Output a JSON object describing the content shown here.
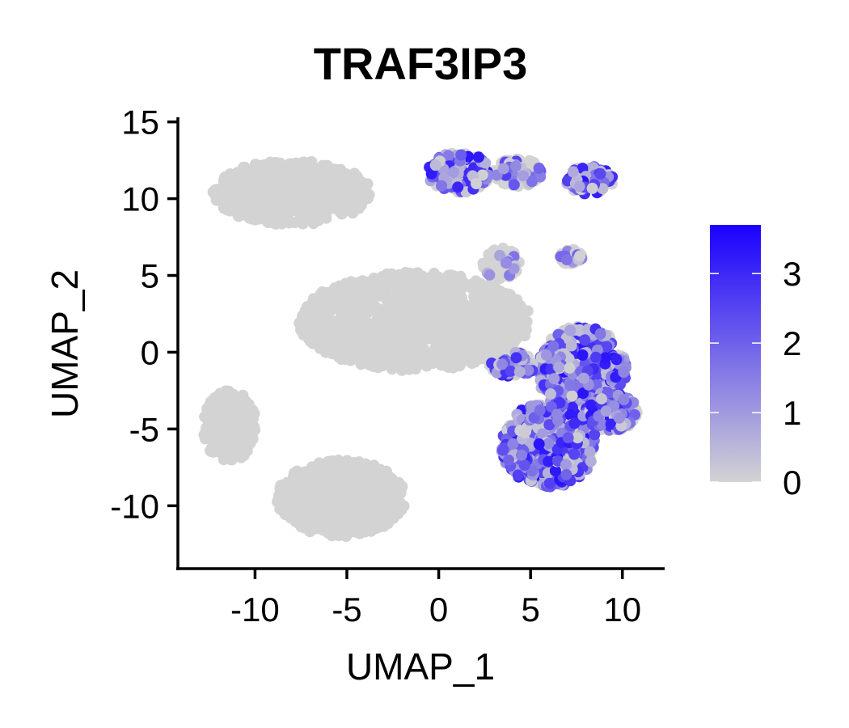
{
  "chart_data": {
    "type": "scatter",
    "title": "TRAF3IP3",
    "xlabel": "UMAP_1",
    "ylabel": "UMAP_2",
    "xlim": [
      -14.2,
      12.3
    ],
    "ylim": [
      -14.2,
      15.3
    ],
    "x_ticks": [
      -10,
      -5,
      0,
      5,
      10
    ],
    "y_ticks": [
      15,
      10,
      5,
      0,
      -5,
      -10
    ],
    "grid": false,
    "legend": "right",
    "colorbar": {
      "min": 0,
      "max": 3.7,
      "ticks": [
        0,
        1,
        2,
        3
      ],
      "low_color": "#d3d3d3",
      "high_color": "#1a00ff"
    },
    "point_color_default": "#d3d3d3",
    "clusters": [
      {
        "center": [
          -8.0,
          10.4
        ],
        "radius": [
          4.3,
          2.1
        ],
        "expression": 0
      },
      {
        "center": [
          -11.4,
          -4.8
        ],
        "radius": [
          1.5,
          2.3
        ],
        "expression": 0
      },
      {
        "center": [
          -5.3,
          -9.5
        ],
        "radius": [
          3.5,
          2.5
        ],
        "expression": 0
      },
      {
        "center": [
          -1.3,
          2.0
        ],
        "radius": [
          6.3,
          3.2
        ],
        "expression": 0
      },
      {
        "center": [
          3.4,
          5.8
        ],
        "radius": [
          1.0,
          1.0
        ],
        "expression": 0.2
      },
      {
        "center": [
          1.1,
          11.7
        ],
        "radius": [
          1.7,
          1.3
        ],
        "expression": 1.0
      },
      {
        "center": [
          4.3,
          11.7
        ],
        "radius": [
          1.3,
          0.9
        ],
        "expression": 0.5
      },
      {
        "center": [
          8.2,
          11.2
        ],
        "radius": [
          1.3,
          0.9
        ],
        "expression": 1.2
      },
      {
        "center": [
          7.2,
          6.2
        ],
        "radius": [
          0.6,
          0.5
        ],
        "expression": 0.3
      },
      {
        "center": [
          7.8,
          -1.2
        ],
        "radius": [
          2.4,
          2.9
        ],
        "expression": 1.3
      },
      {
        "center": [
          6.0,
          -6.0
        ],
        "radius": [
          2.6,
          2.8
        ],
        "expression": 1.3
      },
      {
        "center": [
          9.3,
          -3.9
        ],
        "radius": [
          1.5,
          1.3
        ],
        "expression": 1.1
      },
      {
        "center": [
          4.0,
          -0.8
        ],
        "radius": [
          1.3,
          0.8
        ],
        "expression": 0.9
      }
    ]
  }
}
